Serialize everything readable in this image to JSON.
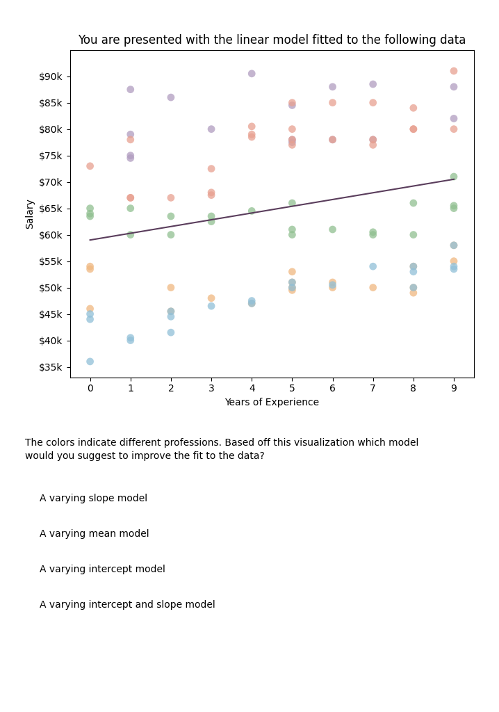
{
  "chart_data": {
    "type": "scatter",
    "title": "You are presented with the linear model fitted to the following data",
    "xlabel": "Years of Experience",
    "ylabel": "Salary",
    "annotations": [
      "The colors indicate different professions. Based off this visualization which model\nwould you suggest to improve the fit to the data?",
      "A varying slope model",
      "A varying mean model",
      "A varying intercept model",
      "A varying intercept and slope model"
    ],
    "xlim": [
      -0.5,
      9.5
    ],
    "xticks": [
      0,
      1,
      2,
      3,
      4,
      5,
      6,
      7,
      8,
      9
    ],
    "ylim": [
      33000,
      95000
    ],
    "yticks": [
      {
        "value": 35000,
        "label": "$35k"
      },
      {
        "value": 40000,
        "label": "$40k"
      },
      {
        "value": 45000,
        "label": "$45k"
      },
      {
        "value": 50000,
        "label": "$50k"
      },
      {
        "value": 55000,
        "label": "$55k"
      },
      {
        "value": 60000,
        "label": "$60k"
      },
      {
        "value": 65000,
        "label": "$65k"
      },
      {
        "value": 70000,
        "label": "$70k"
      },
      {
        "value": 75000,
        "label": "$75k"
      },
      {
        "value": 80000,
        "label": "$80k"
      },
      {
        "value": 85000,
        "label": "$85k"
      },
      {
        "value": 90000,
        "label": "$90k"
      }
    ],
    "grid": false,
    "series": [
      {
        "type": "scatter",
        "marker": "o",
        "color": "#b09cc0",
        "x": [
          1,
          1,
          1,
          1,
          2,
          3,
          4,
          5,
          5,
          5,
          6,
          6,
          7,
          7,
          9,
          9
        ],
        "y": [
          87500,
          79000,
          75000,
          74500,
          86000,
          80000,
          90500,
          84500,
          78000,
          77500,
          88000,
          78000,
          88500,
          78000,
          88000,
          82000
        ]
      },
      {
        "type": "scatter",
        "marker": "o",
        "color": "#e8a090",
        "x": [
          0,
          1,
          1,
          1,
          2,
          3,
          3,
          3,
          4,
          4,
          4,
          5,
          5,
          5,
          5,
          6,
          6,
          7,
          7,
          7,
          8,
          8,
          8,
          9,
          9
        ],
        "y": [
          73000,
          78000,
          67000,
          67000,
          67000,
          72500,
          68000,
          67500,
          80500,
          78500,
          79000,
          85000,
          80000,
          78000,
          77000,
          85000,
          78000,
          85000,
          78000,
          77000,
          84000,
          80000,
          80000,
          91000,
          80000
        ]
      },
      {
        "type": "scatter",
        "marker": "o",
        "color": "#90c090",
        "x": [
          0,
          0,
          0,
          1,
          1,
          2,
          2,
          3,
          3,
          4,
          5,
          5,
          5,
          6,
          7,
          7,
          8,
          8,
          9,
          9,
          9
        ],
        "y": [
          65000,
          64000,
          63500,
          65000,
          60000,
          63500,
          60000,
          63500,
          62500,
          64500,
          66000,
          61000,
          60000,
          61000,
          60000,
          60500,
          60000,
          66000,
          71000,
          65500,
          65000
        ]
      },
      {
        "type": "scatter",
        "marker": "o",
        "color": "#f0b880",
        "x": [
          0,
          0,
          0,
          2,
          2,
          3,
          4,
          5,
          5,
          5,
          5,
          6,
          6,
          7,
          8,
          8,
          8,
          9,
          9
        ],
        "y": [
          54000,
          53500,
          46000,
          50000,
          45500,
          48000,
          47000,
          53000,
          51000,
          50000,
          49500,
          51000,
          50000,
          50000,
          50000,
          49000,
          54000,
          58000,
          55000
        ]
      },
      {
        "type": "scatter",
        "marker": "o",
        "color": "#90c0d8",
        "x": [
          0,
          0,
          0,
          1,
          1,
          2,
          2,
          2,
          3,
          4,
          4,
          5,
          5,
          6,
          7,
          8,
          8,
          8,
          9,
          9,
          9
        ],
        "y": [
          45000,
          44000,
          36000,
          40500,
          40000,
          45500,
          44500,
          41500,
          46500,
          47500,
          47000,
          51000,
          50000,
          50500,
          54000,
          54000,
          53000,
          50000,
          58000,
          54000,
          53500
        ]
      },
      {
        "type": "line",
        "line_style": "solid",
        "color": "#5a3d5c",
        "x": [
          0,
          9
        ],
        "y": [
          59000,
          70500
        ]
      }
    ]
  }
}
